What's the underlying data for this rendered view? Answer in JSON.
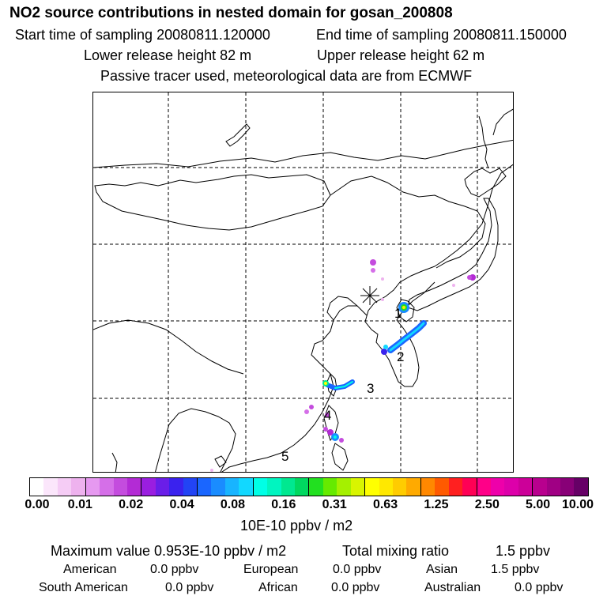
{
  "header": {
    "title": "NO2 source contributions in nested domain for gosan_200808",
    "start_time": "Start time of sampling 20080811.120000",
    "end_time": "End time of sampling 20080811.150000",
    "lower_height": "Lower release height   82 m",
    "upper_height": "Upper release height   62 m",
    "tracer_note": "Passive tracer used, meteorological data are from ECMWF"
  },
  "map": {
    "site_marker_icon": "asterisk-icon",
    "labels": [
      "1",
      "2",
      "3",
      "4",
      "5"
    ]
  },
  "colorbar": {
    "colors": [
      "#ffffff",
      "#fbe6fb",
      "#f5ccf5",
      "#eeb2ee",
      "#e699f0",
      "#d56fe8",
      "#c44cde",
      "#b32bd5",
      "#9a1ee0",
      "#6a1ee8",
      "#3a22ee",
      "#2244f5",
      "#1a66ff",
      "#1a8cff",
      "#18b4ff",
      "#12d8ff",
      "#00ffe6",
      "#00f5c0",
      "#00e890",
      "#00d860",
      "#22e020",
      "#66ea00",
      "#a5f000",
      "#d9f500",
      "#ffff00",
      "#ffe800",
      "#ffcc00",
      "#ffaa00",
      "#ff8800",
      "#ff5a00",
      "#ff2020",
      "#ff0055",
      "#ff0088",
      "#ee00aa",
      "#dd00aa",
      "#cc0099",
      "#b8008e",
      "#a00084",
      "#880077",
      "#660066"
    ],
    "tick_labels": [
      "0.00",
      "0.01",
      "0.02",
      "0.04",
      "0.08",
      "0.16",
      "0.31",
      "0.63",
      "1.25",
      "2.50",
      "5.00",
      "10.00"
    ],
    "unit": "10E-10 ppbv / m2"
  },
  "stats": {
    "max_label": "Maximum value  0.953E-10 ppbv / m2",
    "total_label": "Total mixing ratio",
    "total_value": "1.5 ppbv",
    "regions": [
      {
        "name": "American",
        "value": "0.0 ppbv"
      },
      {
        "name": "European",
        "value": "0.0 ppbv"
      },
      {
        "name": "Asian",
        "value": "1.5 ppbv"
      },
      {
        "name": "South American",
        "value": "0.0 ppbv"
      },
      {
        "name": "African",
        "value": "0.0 ppbv"
      },
      {
        "name": "Australian",
        "value": "0.0 ppbv"
      }
    ]
  }
}
